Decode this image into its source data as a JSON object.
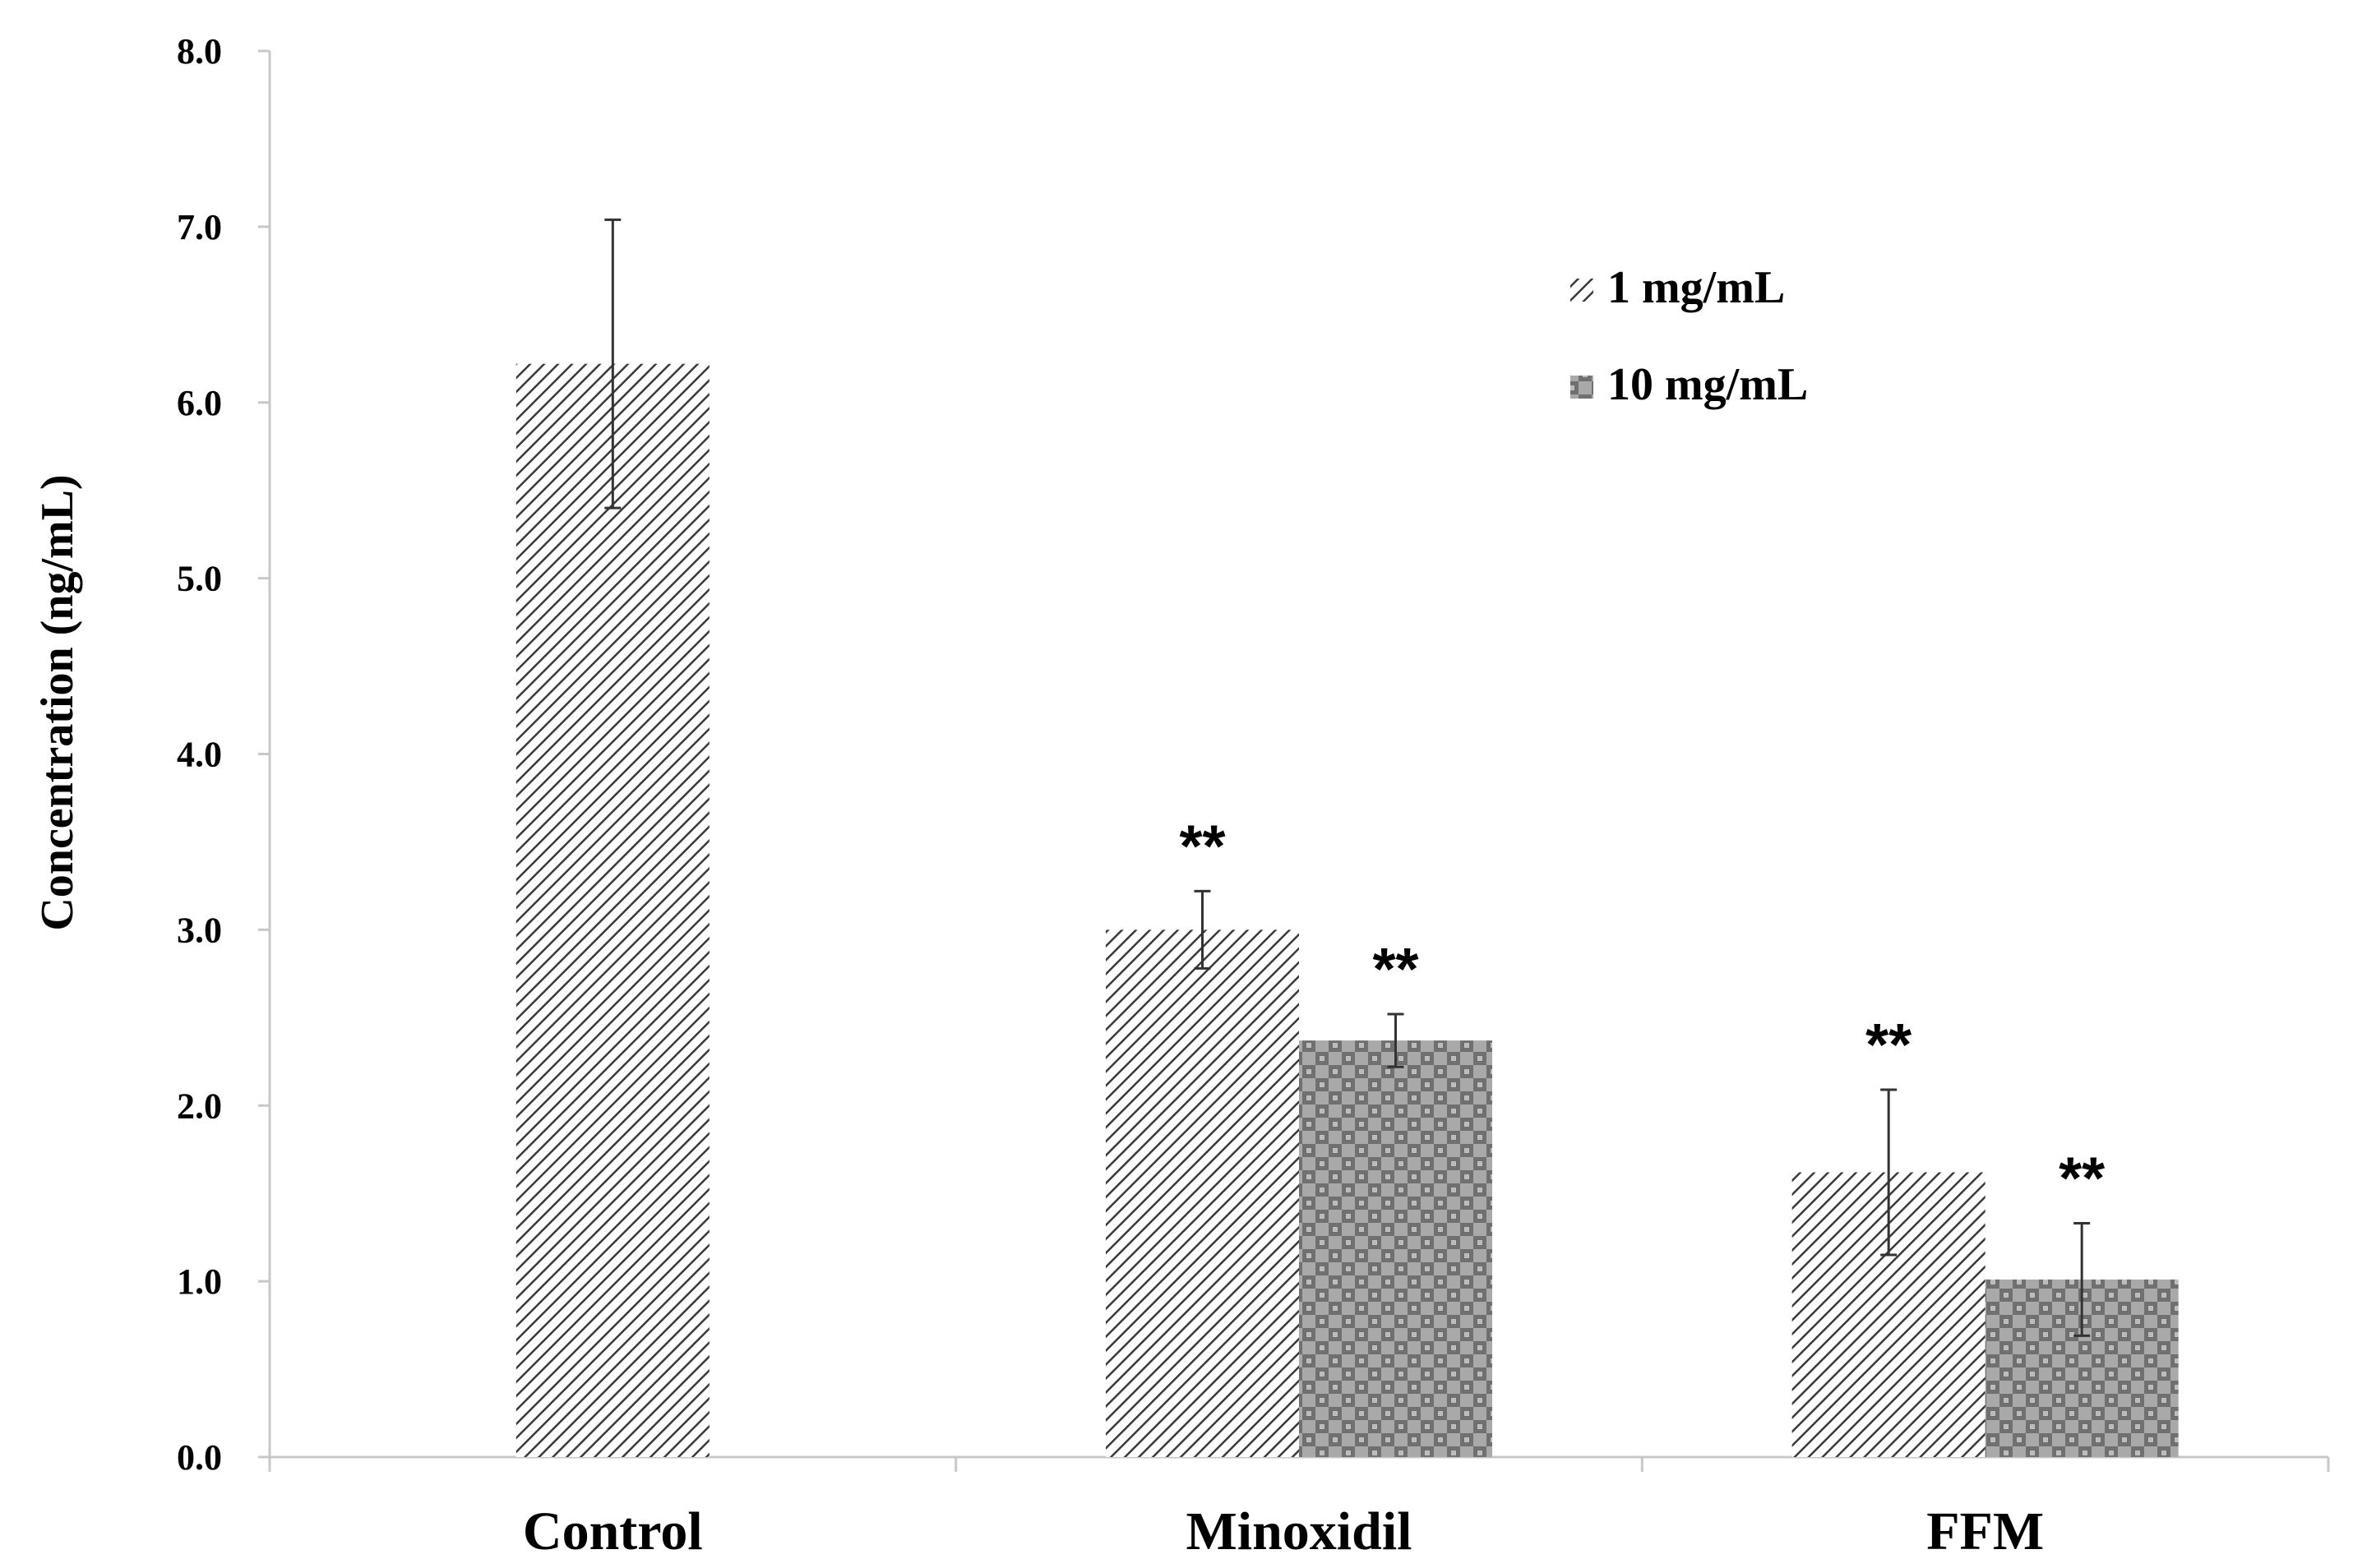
{
  "chart_data": {
    "type": "bar",
    "title": "",
    "xlabel": "",
    "ylabel": "Concentration (ng/mL)",
    "ylim": [
      0,
      8
    ],
    "yticks": [
      "0.0",
      "1.0",
      "2.0",
      "3.0",
      "4.0",
      "5.0",
      "6.0",
      "7.0",
      "8.0"
    ],
    "categories": [
      "Control",
      "Minoxidil",
      "FFM"
    ],
    "series": [
      {
        "name": "1 mg/mL",
        "pattern": "diagonal-hatch",
        "values": [
          6.22,
          3.0,
          1.62
        ],
        "errors": [
          0.82,
          0.22,
          0.47
        ],
        "significance": [
          "",
          "**",
          "**"
        ]
      },
      {
        "name": "10 mg/mL",
        "pattern": "checker",
        "values": [
          null,
          2.37,
          1.01
        ],
        "errors": [
          null,
          0.15,
          0.32
        ],
        "significance": [
          "",
          "**",
          "**"
        ]
      }
    ],
    "legend_position": "top-right",
    "colors": {
      "axis": "#c8c8c8",
      "error_bar": "#333333",
      "hatch_line": "#3a3a3a",
      "checker_dark": "#707070",
      "checker_light": "#a9a9a9"
    }
  }
}
